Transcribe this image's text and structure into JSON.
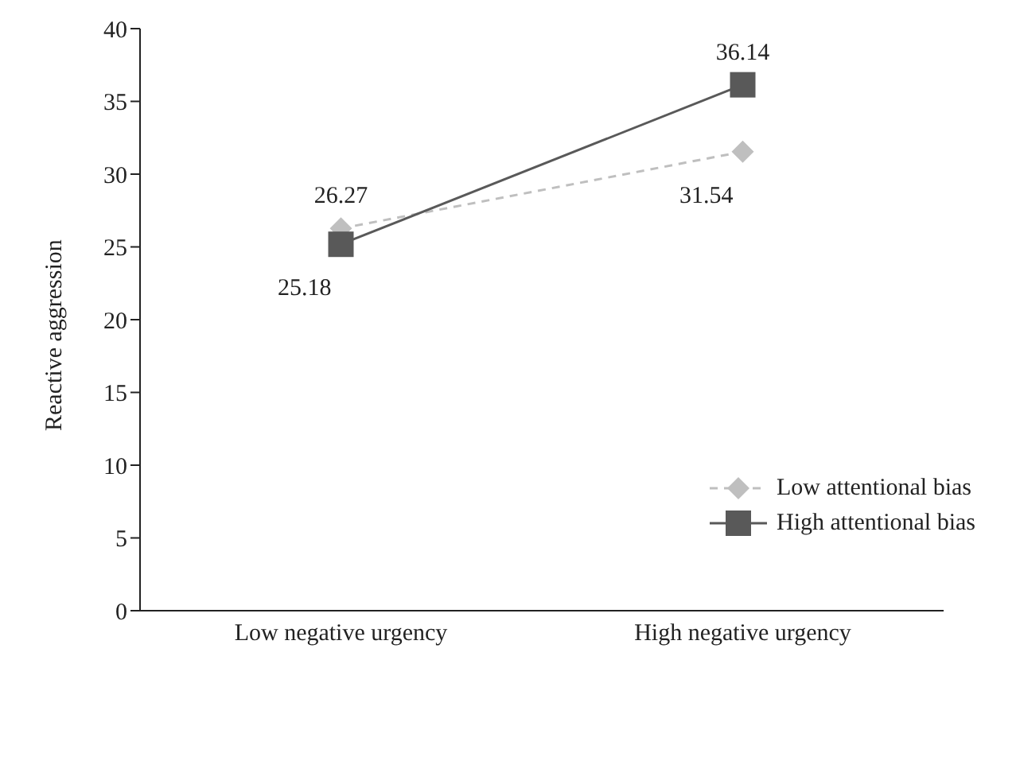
{
  "chart_data": {
    "type": "line",
    "ylabel": "Reactive aggression",
    "categories": [
      "Low negative urgency",
      "High negative urgency"
    ],
    "series": [
      {
        "name": "Low attentional bias",
        "color": "#bfbfbf",
        "values": [
          26.27,
          31.54
        ],
        "marker": "diamond",
        "line_style": "dashed"
      },
      {
        "name": "High attentional bias",
        "color": "#595959",
        "values": [
          25.18,
          36.14
        ],
        "marker": "square",
        "line_style": "solid"
      }
    ],
    "ylim": [
      0,
      40
    ],
    "yticks": [
      0,
      5,
      10,
      15,
      20,
      25,
      30,
      35,
      40
    ],
    "grid": false,
    "legend": "bottom right",
    "data_labels": true
  }
}
